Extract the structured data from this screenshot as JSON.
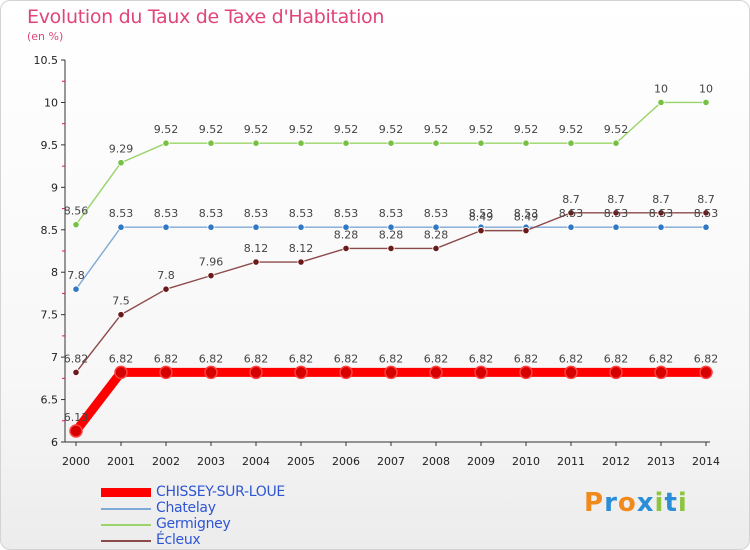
{
  "chart_data": {
    "type": "line",
    "title": "Evolution du Taux de Taxe d'Habitation",
    "subtitle": "(en %)",
    "x": [
      "2000",
      "2001",
      "2002",
      "2003",
      "2004",
      "2005",
      "2006",
      "2007",
      "2008",
      "2009",
      "2010",
      "2011",
      "2012",
      "2013",
      "2014"
    ],
    "ylim": [
      6,
      10.5
    ],
    "yticks": [
      "6",
      "6.5",
      "7",
      "7.5",
      "8",
      "8.5",
      "9",
      "9.5",
      "10",
      "10.5"
    ],
    "series": [
      {
        "name": "CHISSEY-SUR-LOUE",
        "color": "#ff0000",
        "marker": "#d60000",
        "values": [
          6.13,
          6.82,
          6.82,
          6.82,
          6.82,
          6.82,
          6.82,
          6.82,
          6.82,
          6.82,
          6.82,
          6.82,
          6.82,
          6.82,
          6.82
        ],
        "labels": [
          "6.13",
          "6.82",
          "6.82",
          "6.82",
          "6.82",
          "6.82",
          "6.82",
          "6.82",
          "6.82",
          "6.82",
          "6.82",
          "6.82",
          "6.82",
          "6.82",
          "6.82"
        ]
      },
      {
        "name": "Chatelay",
        "color": "#7fa9d6",
        "marker": "#2f78c4",
        "values": [
          7.8,
          8.53,
          8.53,
          8.53,
          8.53,
          8.53,
          8.53,
          8.53,
          8.53,
          8.53,
          8.53,
          8.53,
          8.53,
          8.53,
          8.53
        ],
        "labels": [
          "7.8",
          "8.53",
          "8.53",
          "8.53",
          "8.53",
          "8.53",
          "8.53",
          "8.53",
          "8.53",
          "8.53",
          "8.53",
          "8.53",
          "8.53",
          "8.53",
          "8.53"
        ]
      },
      {
        "name": "Germigney",
        "color": "#9ad36a",
        "marker": "#76c043",
        "values": [
          8.56,
          9.29,
          9.52,
          9.52,
          9.52,
          9.52,
          9.52,
          9.52,
          9.52,
          9.52,
          9.52,
          9.52,
          9.52,
          10,
          10
        ],
        "labels": [
          "8.56",
          "9.29",
          "9.52",
          "9.52",
          "9.52",
          "9.52",
          "9.52",
          "9.52",
          "9.52",
          "9.52",
          "9.52",
          "9.52",
          "9.52",
          "10",
          "10"
        ]
      },
      {
        "name": "Écleux",
        "color": "#8c4a4a",
        "marker": "#6a1a1a",
        "values": [
          6.82,
          7.5,
          7.8,
          7.96,
          8.12,
          8.12,
          8.28,
          8.28,
          8.28,
          8.49,
          8.49,
          8.7,
          8.7,
          8.7,
          8.7
        ],
        "labels": [
          "6.82",
          "7.5",
          "7.8",
          "7.96",
          "8.12",
          "8.12",
          "8.28",
          "8.28",
          "8.28",
          "8.49",
          "8.49",
          "8.7",
          "8.7",
          "8.7",
          "8.7"
        ]
      }
    ]
  },
  "logo": {
    "letters": [
      "P",
      "r",
      "o",
      "x",
      "i",
      "t",
      "i"
    ]
  }
}
